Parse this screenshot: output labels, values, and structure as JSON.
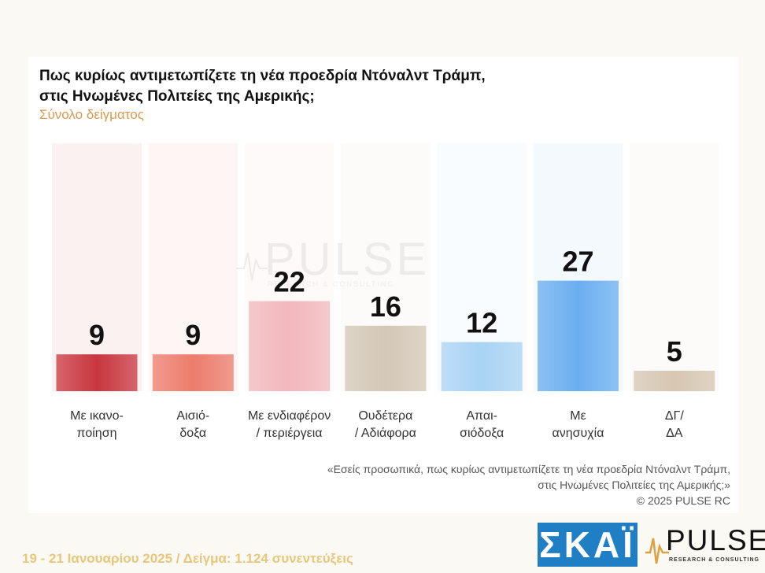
{
  "title_line1": "Πως κυρίως αντιμετωπίζετε τη νέα προεδρία Ντόναλντ Τράμπ,",
  "title_line2": "στις Ηνωμένες Πολιτείες της Αμερικής;",
  "subtitle": "Σύνολο δείγματος",
  "chart_data": {
    "type": "bar",
    "categories": [
      [
        "Με ικανο-",
        "ποίηση"
      ],
      [
        "Αισιό-",
        "δοξα"
      ],
      [
        "Με ενδιαφέρον",
        "/ περιέργεια"
      ],
      [
        "Ουδέτερα",
        "/ Αδιάφορα"
      ],
      [
        "Απαι-",
        "σιόδοξα"
      ],
      [
        "Με",
        "ανησυχία"
      ],
      [
        "ΔΓ/",
        "ΔΑ"
      ]
    ],
    "values": [
      9,
      9,
      22,
      16,
      12,
      27,
      5
    ],
    "colors": [
      "#c9363e",
      "#ec7c6c",
      "#f2b7bc",
      "#d3c7b6",
      "#a9d3f4",
      "#6aaef0",
      "#d6c6b2"
    ],
    "ylim": [
      0,
      44
    ]
  },
  "watermark": {
    "word": "PULSE",
    "sub": "RESEARCH & CONSULTING"
  },
  "footnote": {
    "line1": "«Εσείς προσωπικά, πως κυρίως αντιμετωπίζετε τη νέα προεδρία Ντόναλντ Τράμπ,",
    "line2": "στις Ηνωμένες Πολιτείες της Αμερικής;»",
    "line3": "© 2025 PULSE RC"
  },
  "meta": "19 - 21 Ιανουαρίου 2025  /  Δείγμα:  1.124 συνεντεύξεις",
  "logos": {
    "skai": "ΣΚΑΪ",
    "pulse": "PULSE",
    "pulse_sub": "RESEARCH & CONSULTING"
  }
}
